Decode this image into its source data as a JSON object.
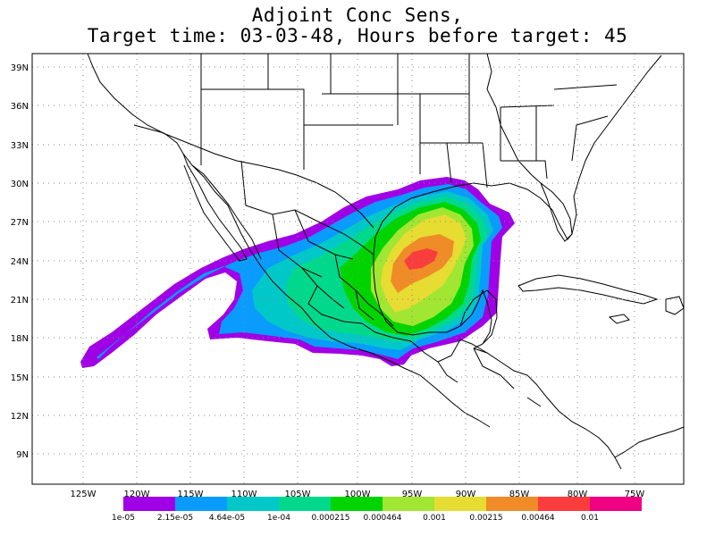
{
  "title": {
    "line1": "Adjoint Conc Sens,",
    "line2": "Target time: 03-03-48, Hours before target: 45"
  },
  "map": {
    "lat_ticks": [
      "39N",
      "36N",
      "33N",
      "30N",
      "27N",
      "24N",
      "21N",
      "18N",
      "15N",
      "12N",
      "9N"
    ],
    "lon_ticks": [
      "125W",
      "120W",
      "115W",
      "110W",
      "105W",
      "100W",
      "95W",
      "90W",
      "85W",
      "80W",
      "75W"
    ],
    "colors": {
      "land": "#ffffff",
      "boundaries": "#000000",
      "grid": "#888888"
    }
  },
  "colorbar": {
    "colors": [
      "#a000e6",
      "#0a9bff",
      "#00c8c8",
      "#00d98c",
      "#00d400",
      "#a0e632",
      "#e6dc32",
      "#f08c28",
      "#fa3c3c",
      "#f00082"
    ],
    "labels": [
      "1e-05",
      "2.15e-05",
      "4.64e-05",
      "1e-04",
      "0.000215",
      "0.000464",
      "0.001",
      "0.00215",
      "0.00464",
      "0.01"
    ]
  },
  "chart_data": {
    "type": "heatmap",
    "title": "Adjoint Conc Sens, Target time: 03-03-48, Hours before target: 45",
    "x_range_deg": [
      -130,
      -71
    ],
    "y_range_deg": [
      7,
      40
    ],
    "legend_placement": "bottom",
    "levels": [
      1e-05,
      2.15e-05,
      4.64e-05,
      0.0001,
      0.000215,
      0.000464,
      0.001,
      0.00215,
      0.00464,
      0.01
    ],
    "maximum_region": {
      "lon": -95,
      "lat": 24
    }
  }
}
